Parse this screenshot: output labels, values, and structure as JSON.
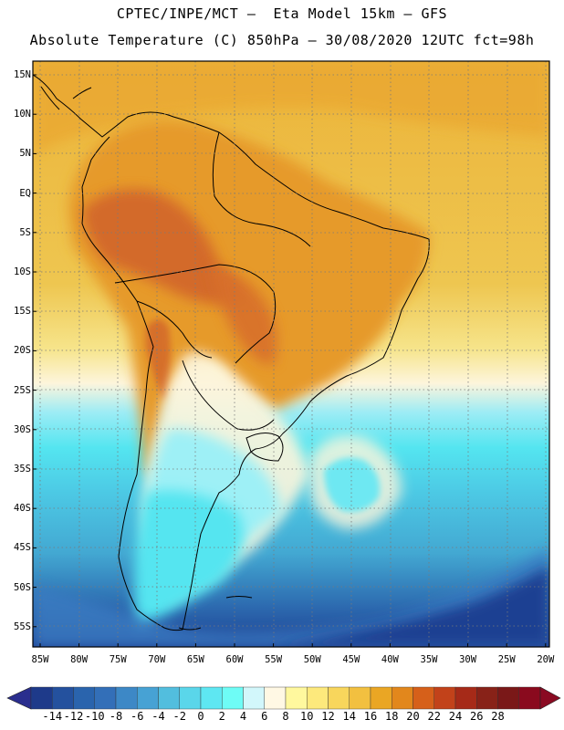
{
  "header": {
    "line1": "CPTEC/INPE/MCT –  Eta Model 15km – GFS",
    "line2": "Absolute Temperature (C) 850hPa – 30/08/2020 12UTC fct=98h"
  },
  "map": {
    "lat_labels": [
      "15N",
      "10N",
      "5N",
      "EQ",
      "5S",
      "10S",
      "15S",
      "20S",
      "25S",
      "30S",
      "35S",
      "40S",
      "45S",
      "50S",
      "55S"
    ],
    "lon_labels": [
      "85W",
      "80W",
      "75W",
      "70W",
      "65W",
      "60W",
      "55W",
      "50W",
      "45W",
      "40W",
      "35W",
      "30W",
      "25W",
      "20W"
    ],
    "colors": {
      "ocean_warm": "#ecb43a",
      "land_warm": "#e69a2a",
      "hot": "#d2652a",
      "mild": "#f6e48a",
      "cool": "#fdf5dc",
      "cold_light": "#54e5f0",
      "cold_mid": "#47b8d8",
      "cold_deep": "#1e3f92"
    }
  },
  "colorbar": {
    "labels": [
      "-14",
      "-12",
      "-10",
      "-8",
      "-6",
      "-4",
      "-2",
      "0",
      "2",
      "4",
      "6",
      "8",
      "10",
      "12",
      "14",
      "16",
      "18",
      "20",
      "22",
      "24",
      "26",
      "28"
    ],
    "colors": [
      "#1e3a8a",
      "#24519e",
      "#2a64ad",
      "#336fb8",
      "#3d88c6",
      "#47a2d4",
      "#52bede",
      "#5ad6ea",
      "#5ee7f2",
      "#6efcf6",
      "#d2f7fb",
      "#fff8e4",
      "#fff89e",
      "#fde97c",
      "#f8d65c",
      "#f2c040",
      "#eaa624",
      "#e2871c",
      "#d6601a",
      "#c2421a",
      "#a62a18",
      "#882218",
      "#7a1818",
      "#8a0a1e"
    ],
    "left_arrow_color": "#2a2e8e",
    "right_arrow_color": "#8a0a22"
  }
}
